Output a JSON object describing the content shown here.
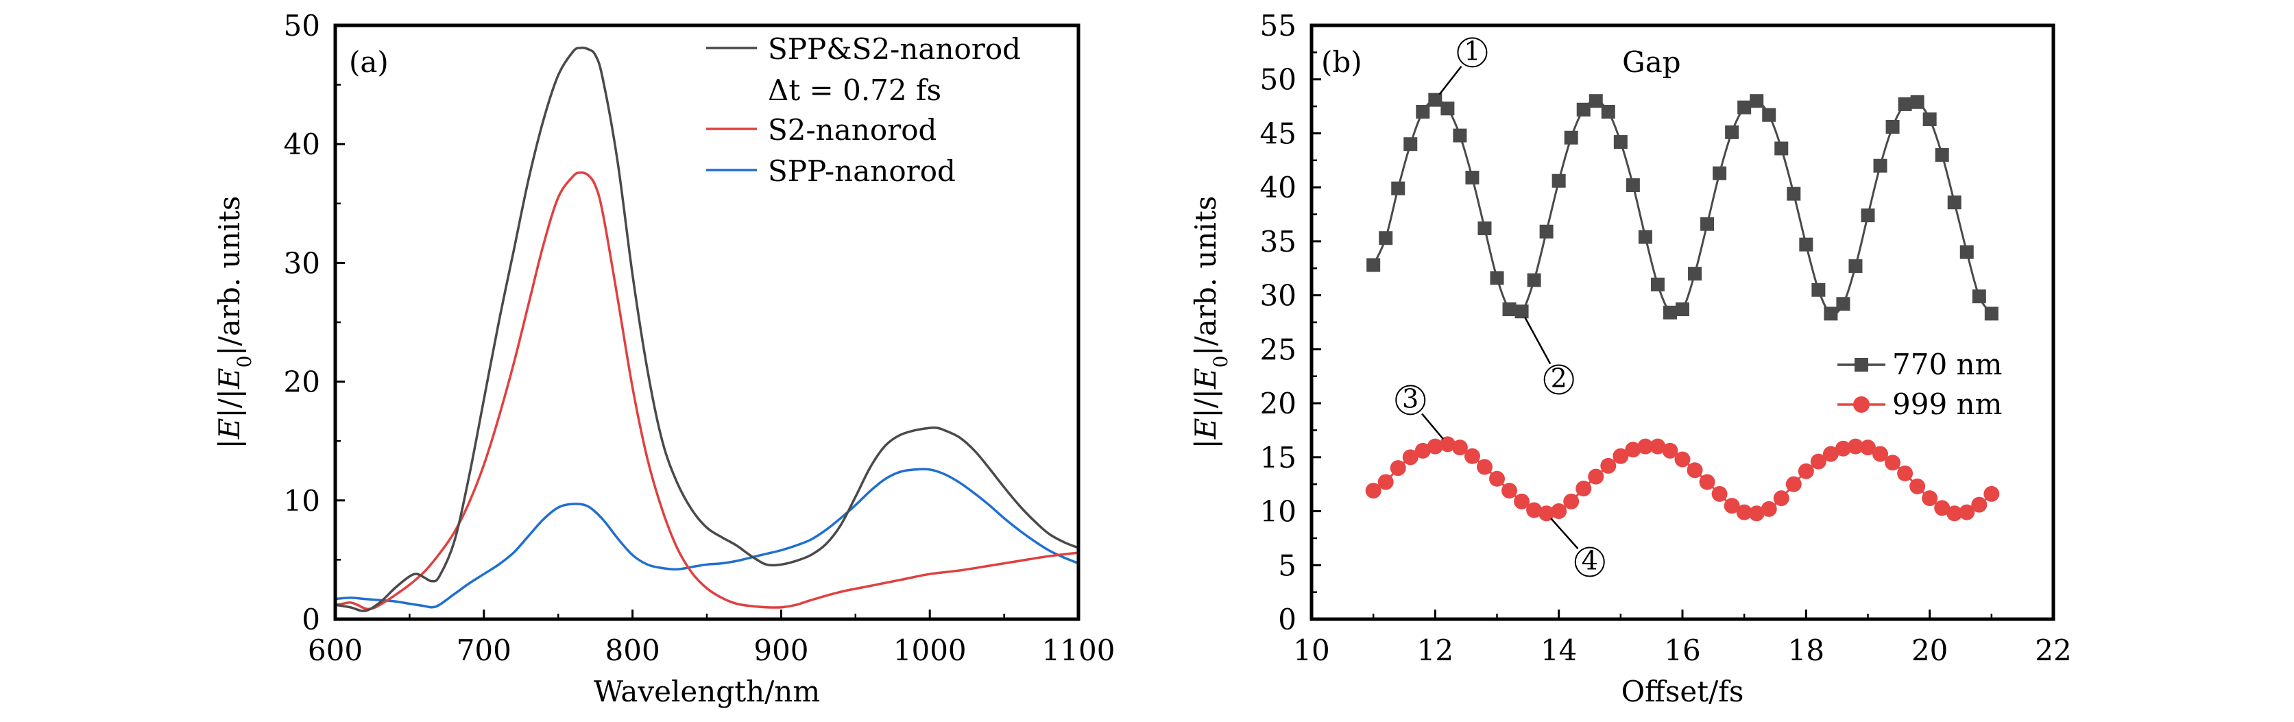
{
  "chart_data": [
    {
      "type": "line",
      "panel_label": "(a)",
      "xlabel": "Wavelength/nm",
      "ylabel": "|E|/|E0|/arb. units",
      "xlim": [
        600,
        1100
      ],
      "ylim": [
        0,
        50
      ],
      "xticks": [
        600,
        700,
        800,
        900,
        1000,
        1100
      ],
      "xticks_minor": [
        650,
        750,
        850,
        950,
        1050
      ],
      "yticks": [
        0,
        10,
        20,
        30,
        40,
        50
      ],
      "yticks_minor": [
        5,
        15,
        25,
        35,
        45
      ],
      "legend_position": "top-right",
      "series": [
        {
          "name": "SPP&S2-nanorod",
          "legend_sub": "Δt = 0.72 fs",
          "color": "#4a4a4a",
          "x": [
            600,
            610,
            620,
            630,
            640,
            650,
            655,
            660,
            665,
            670,
            680,
            690,
            700,
            710,
            720,
            730,
            740,
            750,
            760,
            765,
            770,
            775,
            780,
            790,
            800,
            810,
            820,
            830,
            840,
            850,
            860,
            870,
            880,
            890,
            900,
            910,
            920,
            930,
            940,
            950,
            960,
            970,
            980,
            990,
            1000,
            1005,
            1010,
            1020,
            1030,
            1040,
            1050,
            1060,
            1070,
            1080,
            1090,
            1100
          ],
          "y": [
            1.2,
            1.0,
            0.7,
            1.4,
            2.6,
            3.6,
            3.8,
            3.5,
            3.2,
            3.6,
            6.5,
            12,
            18.5,
            25,
            31,
            37,
            42,
            45.8,
            47.8,
            48.1,
            48,
            47.5,
            45.5,
            38.5,
            29,
            21,
            15,
            11.5,
            9.2,
            7.7,
            6.9,
            6.2,
            5.3,
            4.6,
            4.6,
            4.9,
            5.4,
            6.3,
            7.9,
            10.3,
            12.8,
            14.6,
            15.5,
            15.9,
            16.1,
            16.1,
            15.9,
            15.3,
            14.2,
            12.7,
            11.1,
            9.6,
            8.3,
            7.2,
            6.5,
            6.0
          ]
        },
        {
          "name": "S2-nanorod",
          "color": "#e04040",
          "x": [
            600,
            605,
            610,
            615,
            620,
            625,
            630,
            640,
            650,
            660,
            670,
            680,
            690,
            700,
            710,
            720,
            730,
            740,
            750,
            760,
            765,
            770,
            775,
            780,
            790,
            800,
            810,
            820,
            830,
            840,
            850,
            860,
            870,
            880,
            890,
            900,
            910,
            920,
            940,
            960,
            980,
            1000,
            1020,
            1040,
            1060,
            1080,
            1100
          ],
          "y": [
            1.2,
            1.3,
            1.4,
            1.2,
            0.9,
            0.9,
            1.2,
            2.0,
            2.9,
            4.0,
            5.5,
            7.3,
            9.8,
            13,
            17,
            21.5,
            26.5,
            31.5,
            35.5,
            37.3,
            37.6,
            37.4,
            36.5,
            34.2,
            27,
            19.5,
            13.5,
            9.2,
            6.0,
            3.9,
            2.6,
            1.8,
            1.3,
            1.1,
            1.0,
            1.0,
            1.2,
            1.6,
            2.3,
            2.8,
            3.3,
            3.8,
            4.1,
            4.5,
            4.9,
            5.3,
            5.6
          ]
        },
        {
          "name": "SPP-nanorod",
          "color": "#1f6fd1",
          "x": [
            600,
            610,
            620,
            630,
            640,
            650,
            660,
            665,
            670,
            680,
            690,
            700,
            710,
            720,
            730,
            740,
            750,
            760,
            770,
            780,
            790,
            800,
            810,
            820,
            830,
            840,
            850,
            860,
            870,
            880,
            890,
            900,
            910,
            920,
            930,
            940,
            950,
            960,
            970,
            980,
            990,
            1000,
            1010,
            1020,
            1030,
            1040,
            1050,
            1060,
            1070,
            1080,
            1090,
            1100
          ],
          "y": [
            1.7,
            1.8,
            1.7,
            1.6,
            1.5,
            1.3,
            1.1,
            1.0,
            1.2,
            2.1,
            3.0,
            3.8,
            4.6,
            5.6,
            7.0,
            8.4,
            9.4,
            9.7,
            9.5,
            8.4,
            6.8,
            5.4,
            4.6,
            4.3,
            4.2,
            4.4,
            4.6,
            4.7,
            4.9,
            5.2,
            5.5,
            5.8,
            6.2,
            6.7,
            7.5,
            8.5,
            9.6,
            10.8,
            11.8,
            12.4,
            12.6,
            12.6,
            12.2,
            11.5,
            10.6,
            9.6,
            8.5,
            7.5,
            6.6,
            5.8,
            5.2,
            4.7
          ]
        }
      ]
    },
    {
      "type": "line",
      "panel_label": "(b)",
      "title": "Gap",
      "xlabel": "Offset/fs",
      "ylabel": "|E|/|E0|/arb. units",
      "xlim": [
        10,
        22
      ],
      "ylim": [
        0,
        55
      ],
      "xticks": [
        10,
        12,
        14,
        16,
        18,
        20,
        22
      ],
      "xticks_minor": [
        11,
        13,
        15,
        17,
        19,
        21
      ],
      "yticks": [
        0,
        5,
        10,
        15,
        20,
        25,
        30,
        35,
        40,
        45,
        50,
        55
      ],
      "yticks_minor": [
        2.5,
        7.5,
        12.5,
        17.5,
        22.5,
        27.5,
        32.5,
        37.5,
        42.5,
        47.5,
        52.5
      ],
      "legend_position": "right",
      "series": [
        {
          "name": "770 nm",
          "marker": "square",
          "color": "#4a4a4a",
          "x": [
            11.0,
            11.2,
            11.4,
            11.6,
            11.8,
            12.0,
            12.2,
            12.4,
            12.6,
            12.8,
            13.0,
            13.2,
            13.4,
            13.6,
            13.8,
            14.0,
            14.2,
            14.4,
            14.6,
            14.8,
            15.0,
            15.2,
            15.4,
            15.6,
            15.8,
            16.0,
            16.2,
            16.4,
            16.6,
            16.8,
            17.0,
            17.2,
            17.4,
            17.6,
            17.8,
            18.0,
            18.2,
            18.4,
            18.6,
            18.8,
            19.0,
            19.2,
            19.4,
            19.6,
            19.8,
            20.0,
            20.2,
            20.4,
            20.6,
            20.8,
            21.0
          ],
          "y": [
            32.8,
            35.3,
            39.9,
            44.0,
            47.0,
            48.1,
            47.3,
            44.8,
            40.9,
            36.2,
            31.6,
            28.7,
            28.5,
            31.4,
            35.9,
            40.6,
            44.6,
            47.2,
            48.0,
            47.0,
            44.2,
            40.2,
            35.4,
            31.0,
            28.4,
            28.7,
            32.0,
            36.6,
            41.3,
            45.1,
            47.4,
            48.0,
            46.7,
            43.6,
            39.4,
            34.7,
            30.5,
            28.3,
            29.2,
            32.7,
            37.4,
            42.0,
            45.6,
            47.7,
            47.9,
            46.3,
            43.0,
            38.6,
            34.0,
            29.9,
            28.3
          ]
        },
        {
          "name": "999 nm",
          "marker": "circle",
          "color": "#e84545",
          "x": [
            11.0,
            11.2,
            11.4,
            11.6,
            11.8,
            12.0,
            12.2,
            12.4,
            12.6,
            12.8,
            13.0,
            13.2,
            13.4,
            13.6,
            13.8,
            14.0,
            14.2,
            14.4,
            14.6,
            14.8,
            15.0,
            15.2,
            15.4,
            15.6,
            15.8,
            16.0,
            16.2,
            16.4,
            16.6,
            16.8,
            17.0,
            17.2,
            17.4,
            17.6,
            17.8,
            18.0,
            18.2,
            18.4,
            18.6,
            18.8,
            19.0,
            19.2,
            19.4,
            19.6,
            19.8,
            20.0,
            20.2,
            20.4,
            20.6,
            20.8,
            21.0
          ],
          "y": [
            11.9,
            12.7,
            14.0,
            15.0,
            15.6,
            16.0,
            16.2,
            15.9,
            15.1,
            14.1,
            13.0,
            11.9,
            10.9,
            10.1,
            9.8,
            10.0,
            10.9,
            12.1,
            13.2,
            14.2,
            15.1,
            15.7,
            16.0,
            16.0,
            15.6,
            14.8,
            13.8,
            12.7,
            11.6,
            10.5,
            9.9,
            9.8,
            10.2,
            11.2,
            12.5,
            13.7,
            14.6,
            15.3,
            15.8,
            16.0,
            15.9,
            15.3,
            14.5,
            13.5,
            12.3,
            11.2,
            10.3,
            9.8,
            9.9,
            10.6,
            11.6
          ]
        }
      ],
      "annotations": [
        {
          "label": "①",
          "x": 12.0,
          "y": 48.1,
          "text_x": 12.6,
          "text_y": 52.5
        },
        {
          "label": "②",
          "x": 13.4,
          "y": 28.5,
          "text_x": 14.0,
          "text_y": 22.2
        },
        {
          "label": "③",
          "x": 12.2,
          "y": 16.2,
          "text_x": 11.6,
          "text_y": 20.3
        },
        {
          "label": "④",
          "x": 13.8,
          "y": 9.8,
          "text_x": 14.5,
          "text_y": 5.3
        }
      ]
    }
  ]
}
